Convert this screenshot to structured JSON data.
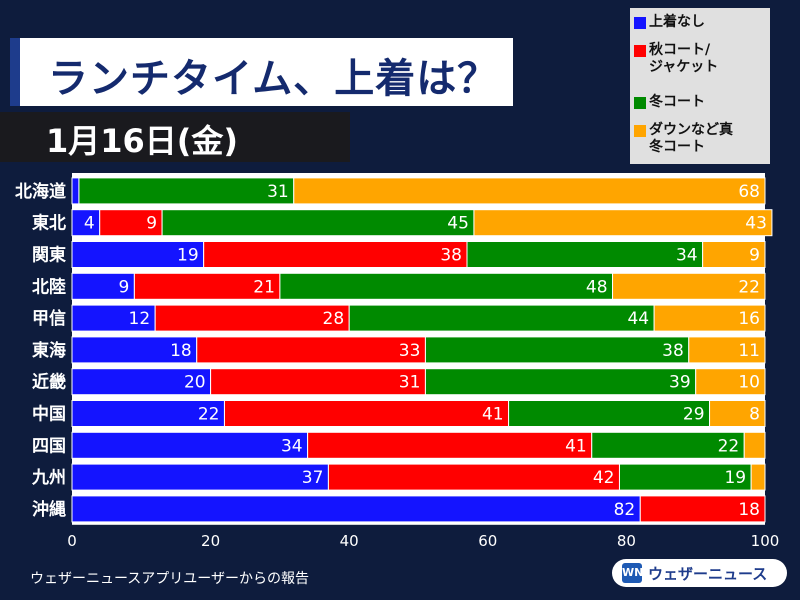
{
  "title": "ランチタイム、上着は？",
  "date": "1月16日(金)",
  "source_note": "ウェザーニュースアプリユーザーからの報告",
  "logo": {
    "mark": "WN",
    "text": "ウェザーニュース"
  },
  "chart_data": {
    "type": "bar",
    "orientation": "horizontal",
    "stacked": true,
    "xlim": [
      0,
      100
    ],
    "xticks": [
      0,
      20,
      40,
      60,
      80,
      100
    ],
    "categories": [
      "北海道",
      "東北",
      "関東",
      "北陸",
      "甲信",
      "東海",
      "近畿",
      "中国",
      "四国",
      "九州",
      "沖縄"
    ],
    "series": [
      {
        "name": "上着なし",
        "color": "#1414ff",
        "values": [
          1,
          4,
          19,
          9,
          12,
          18,
          20,
          22,
          34,
          37,
          82
        ],
        "labels": [
          "",
          "4",
          "19",
          "9",
          "12",
          "18",
          "20",
          "22",
          "34",
          "37",
          "82"
        ]
      },
      {
        "name": "秋コート/ジャケット",
        "color": "#ff0000",
        "values": [
          0,
          9,
          38,
          21,
          28,
          33,
          31,
          41,
          41,
          42,
          18
        ],
        "labels": [
          "",
          "9",
          "38",
          "21",
          "28",
          "33",
          "31",
          "41",
          "41",
          "42",
          "18"
        ]
      },
      {
        "name": "冬コート",
        "color": "#008a00",
        "values": [
          31,
          45,
          34,
          48,
          44,
          38,
          39,
          29,
          22,
          19,
          0
        ],
        "labels": [
          "31",
          "45",
          "34",
          "48",
          "44",
          "38",
          "39",
          "29",
          "22",
          "19",
          ""
        ]
      },
      {
        "name": "ダウンなど真冬コート",
        "color": "#ffa500",
        "values": [
          68,
          43,
          9,
          22,
          16,
          11,
          10,
          8,
          3,
          2,
          0
        ],
        "labels": [
          "68",
          "43",
          "9",
          "22",
          "16",
          "11",
          "10",
          "8",
          "",
          "",
          ""
        ]
      }
    ],
    "legend_labels": [
      "上着なし",
      "秋コート/\nジャケット",
      "冬コート",
      "ダウンなど真\n冬コート"
    ],
    "legend": "top-right"
  }
}
